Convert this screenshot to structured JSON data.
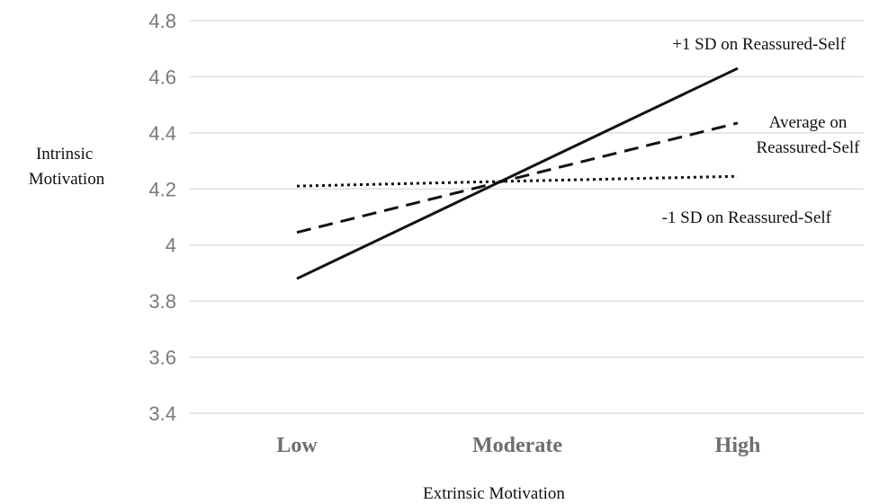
{
  "chart_data": {
    "type": "line",
    "categories": [
      "Low",
      "Moderate",
      "High"
    ],
    "xlabel": "Extrinsic Motivation",
    "ylabel_lines": [
      "Intrinsic",
      "Motivation"
    ],
    "ylim": [
      3.4,
      4.8
    ],
    "yticks": [
      "3.4",
      "3.6",
      "3.8",
      "4",
      "4.2",
      "4.4",
      "4.6",
      "4.8"
    ],
    "grid": true,
    "series": [
      {
        "name": "+1 SD on Reassured-Self",
        "label_lines": [
          "+1 SD on Reassured-Self"
        ],
        "style": "solid",
        "values": [
          3.88,
          4.255,
          4.63
        ]
      },
      {
        "name": "Average on Reassured-Self",
        "label_lines": [
          "Average on",
          "Reassured-Self"
        ],
        "style": "dashed",
        "values": [
          4.045,
          4.24,
          4.435
        ]
      },
      {
        "name": "-1 SD on Reassured-Self",
        "label_lines": [
          "-1 SD on Reassured-Self"
        ],
        "style": "dotted",
        "values": [
          4.21,
          4.228,
          4.245
        ]
      }
    ],
    "colors": {
      "line": "#111111",
      "grid": "#d9d9d9",
      "tick": "#7a7a7a"
    }
  }
}
